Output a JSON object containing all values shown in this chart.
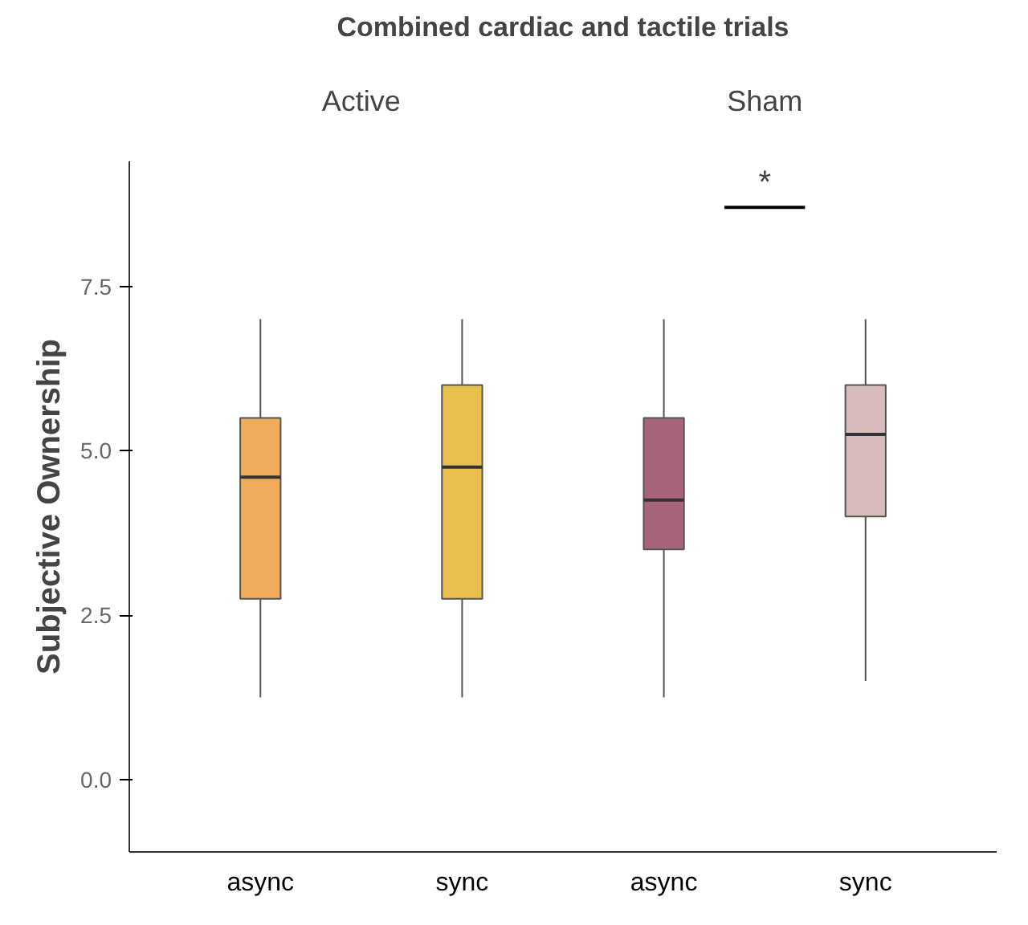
{
  "chart_data": {
    "type": "box",
    "title": "Combined cardiac and tactile trials",
    "ylabel": "Subjective Ownership",
    "categories": [
      "async",
      "sync",
      "async",
      "sync"
    ],
    "colors": [
      "#efac5c",
      "#e8c050",
      "#a86478",
      "#d8bcbc"
    ],
    "boxes": [
      {
        "low": 1.25,
        "q1": 2.75,
        "median": 4.6,
        "q3": 5.5,
        "high": 7
      },
      {
        "low": 1.25,
        "q1": 2.75,
        "median": 4.75,
        "q3": 6,
        "high": 7
      },
      {
        "low": 1.25,
        "q1": 3.5,
        "median": 4.25,
        "q3": 5.5,
        "high": 7
      },
      {
        "low": 1.5,
        "q1": 4,
        "median": 5.25,
        "q3": 6,
        "high": 7
      }
    ],
    "ylim": [
      -1.1,
      9.4
    ],
    "yticks": [
      {
        "value": 0,
        "label": "0.0"
      },
      {
        "value": 2.5,
        "label": "2.5"
      },
      {
        "value": 5,
        "label": "5.0"
      },
      {
        "value": 7.5,
        "label": "7.5"
      }
    ],
    "grid": false,
    "annotations": [
      "Active",
      "Sham",
      "*"
    ]
  }
}
